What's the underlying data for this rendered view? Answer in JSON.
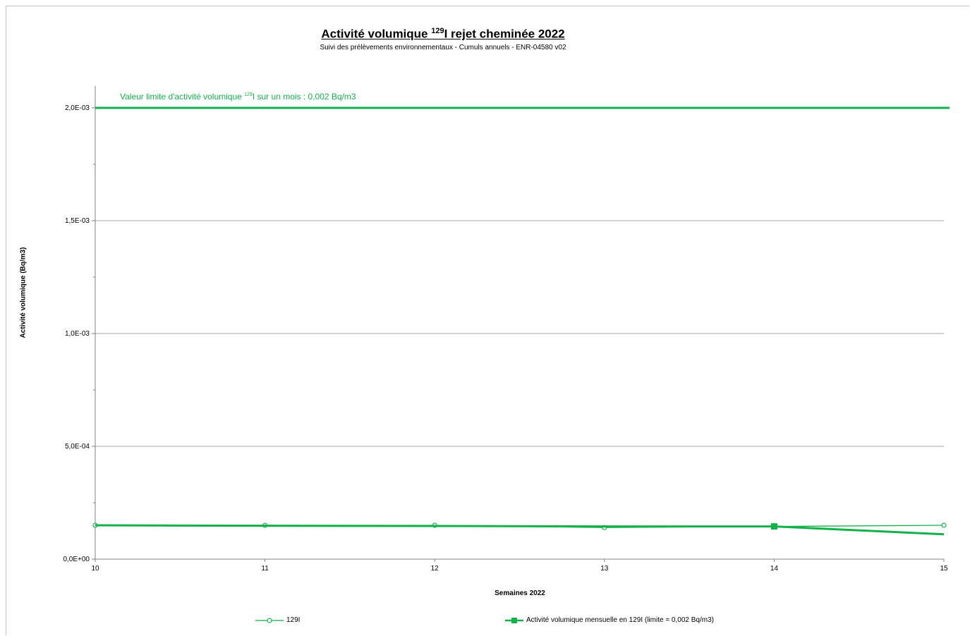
{
  "chart_data": {
    "type": "line",
    "title_main": "Activité volumique ",
    "title_sup": "129",
    "title_rest": "I rejet cheminée 2022",
    "subtitle": "Suivi des prélèvements environnementaux - Cumuls annuels - ENR-04580 v02",
    "xlabel": "Semaines 2022",
    "ylabel": "Activité volumique (Bq/m3)",
    "xlim": [
      10,
      15
    ],
    "ylim": [
      0,
      0.002
    ],
    "x_ticks": [
      10,
      11,
      12,
      13,
      14,
      15
    ],
    "x_tick_labels": [
      "10",
      "11",
      "12",
      "13",
      "14",
      "15"
    ],
    "y_ticks": [
      0,
      0.0005,
      0.001,
      0.0015,
      0.002
    ],
    "y_tick_labels": [
      "0,0E+00",
      "5,0E-04",
      "1,0E-03",
      "1,5E-03",
      "2,0E-03"
    ],
    "grid": true,
    "legend_position": "bottom",
    "limit": {
      "value": 0.002,
      "label_main": "Valeur limite d'activité volumique ",
      "label_sup": "129",
      "label_rest": "I sur un mois : 0,002 Bq/m3",
      "color": "#14b14b"
    },
    "series": [
      {
        "name": "129I",
        "marker": "open-circle",
        "color": "#14b14b",
        "x": [
          10,
          11,
          12,
          13,
          14,
          15
        ],
        "values": [
          0.00015,
          0.00015,
          0.00015,
          0.00014,
          0.000145,
          0.00015
        ]
      },
      {
        "name": "Activité volumique mensuelle en 129I  (limite = 0,002 Bq/m3)",
        "marker": "filled-square",
        "color": "#14b14b",
        "x": [
          10,
          11,
          12,
          13,
          14,
          15
        ],
        "values": [
          0.00015,
          0.000148,
          0.000147,
          0.000145,
          0.000145,
          0.00011
        ],
        "marker_points": [
          14
        ]
      }
    ]
  }
}
